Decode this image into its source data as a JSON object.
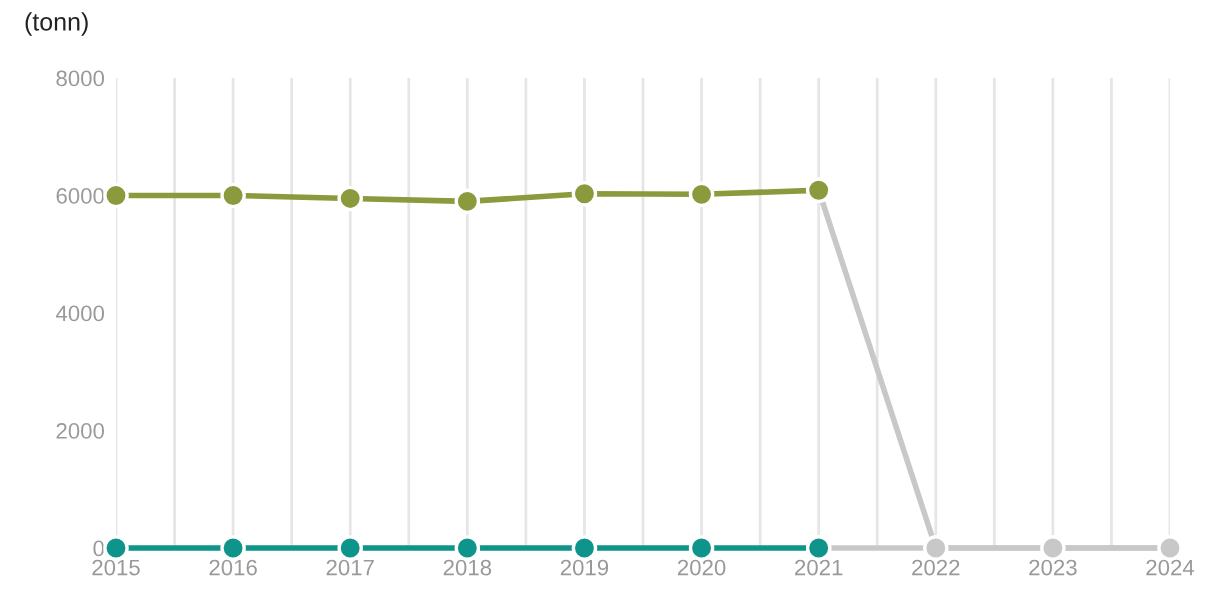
{
  "chart_data": {
    "type": "line",
    "ylabel": "(tonn)",
    "x": [
      2015,
      2016,
      2017,
      2018,
      2019,
      2020,
      2021
    ],
    "series": [
      {
        "color": "#c8c8c8",
        "x": [
          2021,
          2022,
          2023,
          2024
        ],
        "values": [
          6090,
          0,
          0,
          0
        ]
      },
      {
        "color": "#c8c8c8",
        "x": [
          2021,
          2022,
          2023,
          2024
        ],
        "values": [
          0,
          0,
          0,
          0
        ]
      },
      {
        "color": "#8a9a3c",
        "values": [
          6000,
          6000,
          5950,
          5900,
          6030,
          6020,
          6090
        ]
      },
      {
        "color": "#0f948c",
        "values": [
          0,
          0,
          0,
          0,
          0,
          0,
          0
        ]
      }
    ],
    "xlim": [
      2015,
      2024
    ],
    "ylim": [
      0,
      8000
    ],
    "xticks": [
      2015,
      {
        "value": 2015.5,
        "label": null
      },
      2016,
      {
        "value": 2016.5,
        "label": null
      },
      2017,
      {
        "value": 2017.5,
        "label": null
      },
      2018,
      {
        "value": 2018.5,
        "label": null
      },
      2019,
      {
        "value": 2019.5,
        "label": null
      },
      2020,
      {
        "value": 2020.5,
        "label": null
      },
      2021,
      {
        "value": 2021.5,
        "label": null
      },
      2022,
      {
        "value": 2022.5,
        "label": null
      },
      2023,
      {
        "value": 2023.5,
        "label": null
      },
      2024
    ],
    "yticks": [
      0,
      2000,
      4000,
      6000,
      8000
    ],
    "grid": "x",
    "legend": false,
    "marker": "circle",
    "line_style": "solid"
  }
}
